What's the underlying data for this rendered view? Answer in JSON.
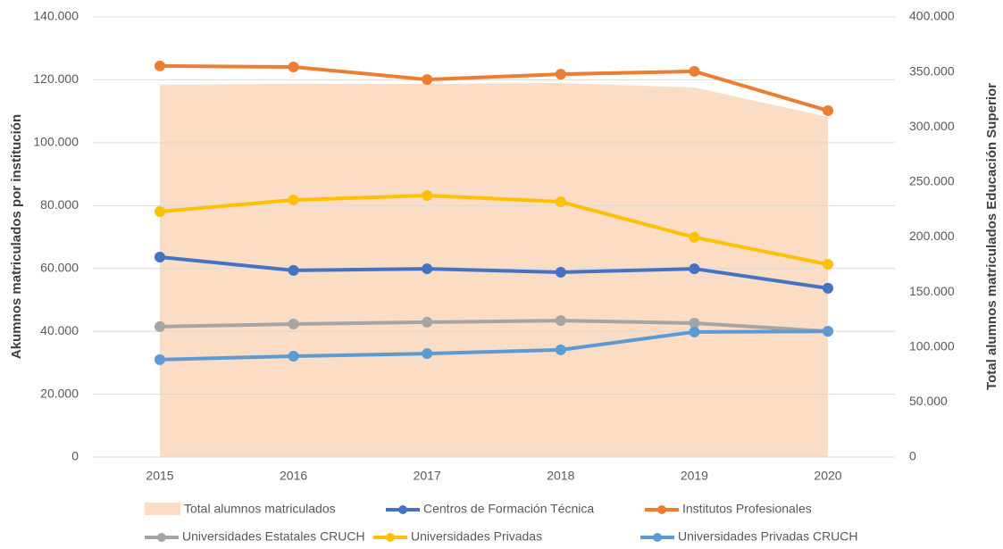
{
  "chart_data": {
    "type": "line",
    "y_label": "Akumnos matriculados por institución",
    "y2_label": "Total alumnos matriculados Educación Superior",
    "x": [
      "2015",
      "2016",
      "2017",
      "2018",
      "2019",
      "2020"
    ],
    "ylim": [
      0,
      140000
    ],
    "yticks": [
      0,
      {
        "value": 20000,
        "label": "20.000"
      },
      {
        "value": 40000,
        "label": "40.000"
      },
      {
        "value": 60000,
        "label": "60.000"
      },
      {
        "value": 80000,
        "label": "80.000"
      },
      {
        "value": 100000,
        "label": "100.000"
      },
      {
        "value": 120000,
        "label": "120.000"
      },
      {
        "value": 140000,
        "label": "140.000"
      }
    ],
    "y2lim": [
      0,
      400000
    ],
    "y2ticks": [
      0,
      {
        "value": 50000,
        "label": "50.000"
      },
      {
        "value": 100000,
        "label": "100.000"
      },
      {
        "value": 150000,
        "label": "150.000"
      },
      {
        "value": 200000,
        "label": "200.000"
      },
      {
        "value": 250000,
        "label": "250.000"
      },
      {
        "value": 300000,
        "label": "300.000"
      },
      {
        "value": 350000,
        "label": "350.000"
      },
      {
        "value": 400000,
        "label": "400.000"
      }
    ],
    "grid": true,
    "legend": "bottom",
    "area": {
      "name": "Total alumnos matriculados",
      "color": "#fbdcc5",
      "axis": "y2",
      "values": [
        338300,
        339100,
        339100,
        340000,
        335900,
        309100
      ]
    },
    "series": [
      {
        "name": "Centros de Formación Técnica",
        "color": "#4472c4",
        "values": [
          63600,
          59400,
          59900,
          58800,
          59900,
          53700
        ]
      },
      {
        "name": "Institutos Profesionales",
        "color": "#ed7d31",
        "values": [
          124400,
          124100,
          120100,
          121800,
          122700,
          110200
        ]
      },
      {
        "name": "Universidades Estatales CRUCH",
        "color": "#a5a5a5",
        "values": [
          41500,
          42300,
          42900,
          43400,
          42600,
          40000
        ]
      },
      {
        "name": "Universidades Privadas",
        "color": "#ffc000",
        "values": [
          78100,
          81800,
          83200,
          81200,
          69900,
          61300
        ]
      },
      {
        "name": "Universidades Privadas CRUCH",
        "color": "#5b9bd5",
        "values": [
          31000,
          32100,
          32900,
          34100,
          39800,
          40000
        ]
      }
    ]
  }
}
